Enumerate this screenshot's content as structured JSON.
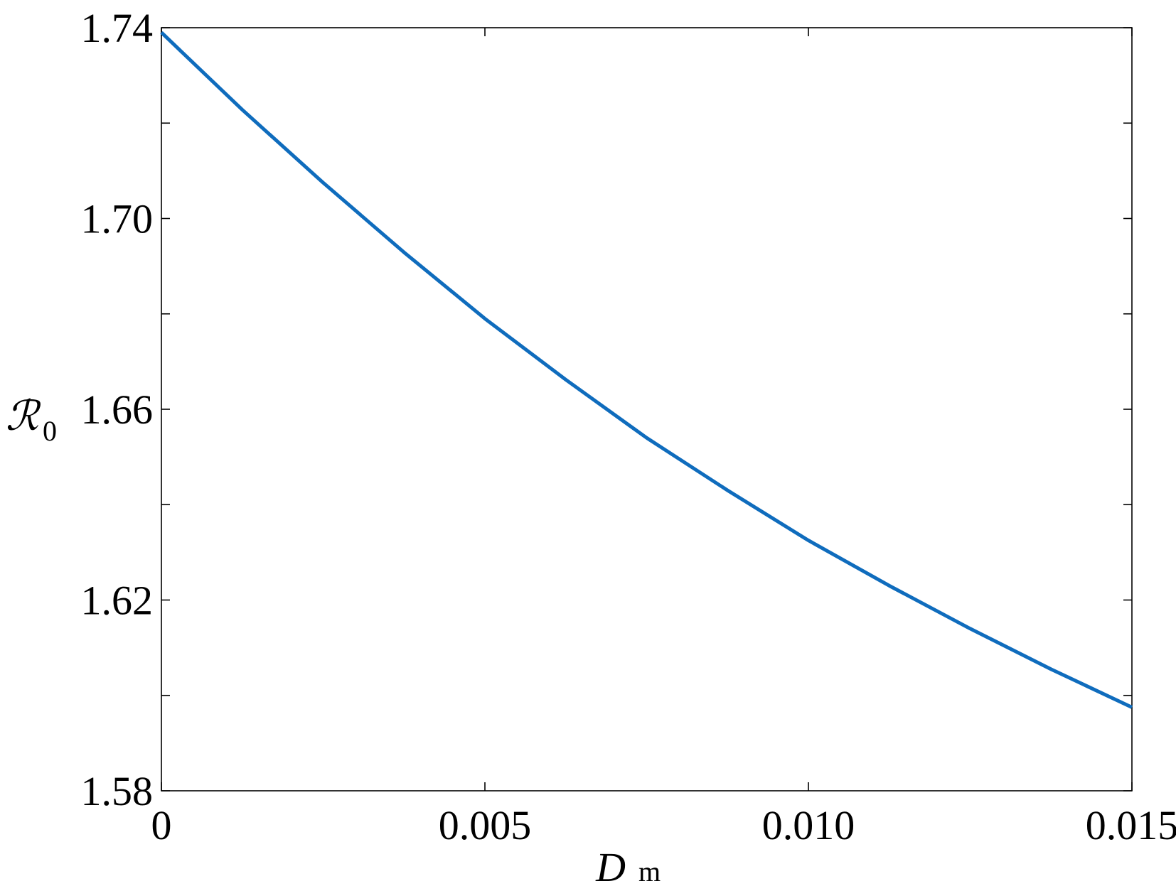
{
  "chart_data": {
    "type": "line",
    "xlabel": "D",
    "xlabel_sub": "m",
    "ylabel": "ℛ",
    "ylabel_sub": "0",
    "x": [
      0,
      0.00125,
      0.0025,
      0.00375,
      0.005,
      0.00625,
      0.0075,
      0.00875,
      0.01,
      0.01125,
      0.0125,
      0.01375,
      0.015
    ],
    "series": [
      {
        "color": "#0f6cbd",
        "values": [
          1.739,
          1.7228,
          1.7075,
          1.6929,
          1.679,
          1.6662,
          1.654,
          1.643,
          1.6325,
          1.623,
          1.614,
          1.6055,
          1.5975
        ]
      }
    ],
    "xlim": [
      0,
      0.015
    ],
    "xticks": [
      0,
      0.005,
      {
        "value": 0.01,
        "label": "0.010"
      },
      0.015
    ],
    "ylim": [
      1.58,
      1.74
    ],
    "yticks": [
      {
        "value": 1.58,
        "label": "1.58"
      },
      {
        "value": 1.62,
        "label": "1.62"
      },
      {
        "value": 1.66,
        "label": "1.66"
      },
      {
        "value": 1.7,
        "label": "1.70"
      },
      {
        "value": 1.74,
        "label": "1.74"
      }
    ],
    "yminor_ticks": [
      1.6,
      1.64,
      1.68,
      1.72
    ]
  }
}
